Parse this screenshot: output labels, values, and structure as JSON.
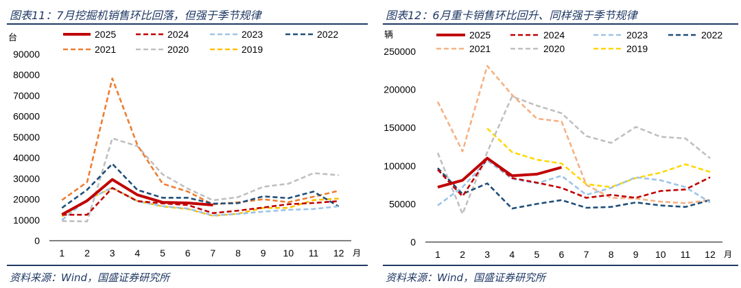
{
  "page": {
    "left_title": "图表11：7月挖掘机销售环比回落，但强于季节规律",
    "right_title": "图表12：6月重卡销售环比回升、同样强于季节规律",
    "source": "资料来源：Wind，国盛证券研究所"
  },
  "chart_data": [
    {
      "type": "line",
      "title": "图表11：7月挖掘机销售环比回落，但强于季节规律",
      "ylabel": "台",
      "xlabel": "月",
      "ylim": [
        0,
        90000
      ],
      "yticks": [
        "0",
        "10000",
        "20000",
        "30000",
        "40000",
        "50000",
        "60000",
        "70000",
        "80000",
        "90000"
      ],
      "categories": [
        "1",
        "2",
        "3",
        "4",
        "5",
        "6",
        "7",
        "8",
        "9",
        "10",
        "11",
        "12"
      ],
      "legend": "top",
      "grid": false,
      "series": [
        {
          "name": "2025",
          "color": "#c00000",
          "dash": "solid",
          "values": [
            12600,
            19300,
            29500,
            22100,
            18500,
            18200,
            17200,
            null,
            null,
            null,
            null,
            null
          ]
        },
        {
          "name": "2024",
          "color": "#c00000",
          "dash": "dashed",
          "values": [
            12500,
            12500,
            25400,
            19100,
            18000,
            17200,
            13300,
            14500,
            16000,
            17600,
            18200,
            19100
          ]
        },
        {
          "name": "2023",
          "color": "#9dc3e6",
          "dash": "dashed",
          "values": [
            10000,
            19700,
            25600,
            19000,
            16700,
            15500,
            12200,
            12900,
            14000,
            14900,
            15300,
            16600
          ]
        },
        {
          "name": "2022",
          "color": "#1f4e79",
          "dash": "dashed",
          "values": [
            15800,
            24600,
            37100,
            24500,
            20700,
            20700,
            17900,
            18100,
            21400,
            20500,
            23700,
            16500
          ]
        },
        {
          "name": "2021",
          "color": "#ed7d31",
          "dash": "dashed",
          "values": [
            19600,
            28300,
            78300,
            46100,
            27500,
            23700,
            17500,
            18500,
            20000,
            18600,
            21200,
            24100
          ]
        },
        {
          "name": "2020",
          "color": "#bfbfbf",
          "dash": "dashed",
          "values": [
            9500,
            9300,
            49400,
            45600,
            32000,
            25100,
            19500,
            21000,
            26000,
            27500,
            32600,
            31600
          ]
        },
        {
          "name": "2019",
          "color": "#ffc000",
          "dash": "dashed",
          "values": [
            11700,
            19700,
            25500,
            19200,
            16500,
            15300,
            12000,
            13000,
            15800,
            15800,
            19600,
            20300
          ]
        }
      ]
    },
    {
      "type": "line",
      "title": "图表12：6月重卡销售环比回升、同样强于季节规律",
      "ylabel": "辆",
      "xlabel": "月",
      "ylim": [
        0,
        250000
      ],
      "yticks": [
        "0",
        "50000",
        "100000",
        "150000",
        "200000",
        "250000"
      ],
      "categories": [
        "1",
        "2",
        "3",
        "4",
        "5",
        "6",
        "7",
        "8",
        "9",
        "10",
        "11",
        "12"
      ],
      "legend": "top",
      "grid": false,
      "series": [
        {
          "name": "2025",
          "color": "#c00000",
          "dash": "solid",
          "values": [
            72000,
            81000,
            110000,
            87000,
            89000,
            98000,
            null,
            null,
            null,
            null,
            null,
            null
          ]
        },
        {
          "name": "2024",
          "color": "#c00000",
          "dash": "dashed",
          "values": [
            95000,
            60000,
            110000,
            84000,
            78000,
            71000,
            58000,
            62000,
            58000,
            67000,
            69000,
            85000
          ]
        },
        {
          "name": "2023",
          "color": "#9dc3e6",
          "dash": "dashed",
          "values": [
            48000,
            72000,
            107000,
            83000,
            77000,
            87000,
            62000,
            71000,
            85000,
            81000,
            72000,
            52000
          ]
        },
        {
          "name": "2022",
          "color": "#1f4e79",
          "dash": "dashed",
          "values": [
            97000,
            63000,
            77000,
            44000,
            50000,
            55000,
            45000,
            46000,
            52000,
            48000,
            46000,
            55000
          ]
        },
        {
          "name": "2021",
          "color": "#f4b183",
          "dash": "dashed",
          "values": [
            184000,
            119000,
            231000,
            193000,
            162000,
            158000,
            75000,
            58000,
            57000,
            53000,
            51000,
            55000
          ]
        },
        {
          "name": "2020",
          "color": "#bfbfbf",
          "dash": "dashed",
          "values": [
            117000,
            37000,
            118000,
            191000,
            179000,
            169000,
            139000,
            130000,
            151000,
            138000,
            136000,
            110000
          ]
        },
        {
          "name": "2019",
          "color": "#ffd700",
          "dash": "dashed",
          "values": [
            null,
            null,
            149000,
            118000,
            108000,
            103000,
            76000,
            72000,
            84000,
            91000,
            102000,
            92000
          ]
        }
      ]
    }
  ]
}
